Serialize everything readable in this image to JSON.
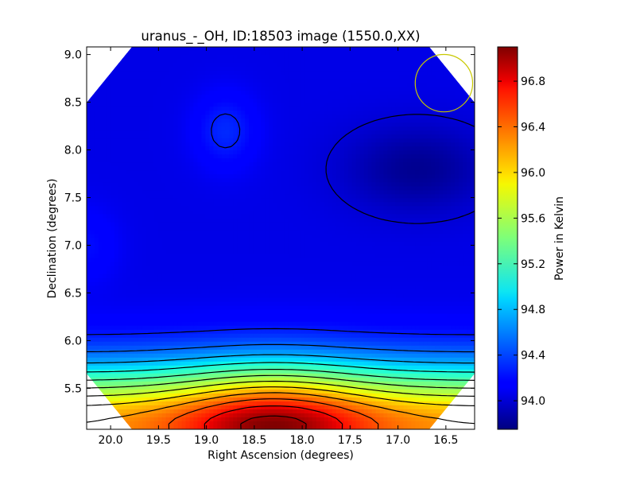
{
  "chart_data": {
    "type": "heatmap",
    "title": "uranus_-_OH, ID:18503 image (1550.0,XX)",
    "xlabel": "Right Ascension (degrees)",
    "ylabel": "Declination (degrees)",
    "colorbar_label": "Power in Kelvin",
    "xlim": [
      20.25,
      16.2
    ],
    "ylim": [
      5.07,
      9.08
    ],
    "x_ticks": [
      {
        "value": 20.0,
        "label": "20.0"
      },
      {
        "value": 19.5,
        "label": "19.5"
      },
      {
        "value": 19.0,
        "label": "19.0"
      },
      {
        "value": 18.5,
        "label": "18.5"
      },
      {
        "value": 18.0,
        "label": "18.0"
      },
      {
        "value": 17.5,
        "label": "17.5"
      },
      {
        "value": 17.0,
        "label": "17.0"
      },
      {
        "value": 16.5,
        "label": "16.5"
      }
    ],
    "y_ticks": [
      {
        "value": 5.5,
        "label": "5.5"
      },
      {
        "value": 6.0,
        "label": "6.0"
      },
      {
        "value": 6.5,
        "label": "6.5"
      },
      {
        "value": 7.0,
        "label": "7.0"
      },
      {
        "value": 7.5,
        "label": "7.5"
      },
      {
        "value": 8.0,
        "label": "8.0"
      },
      {
        "value": 8.5,
        "label": "8.5"
      },
      {
        "value": 9.0,
        "label": "9.0"
      }
    ],
    "colorbar_range": [
      93.75,
      97.1
    ],
    "colorbar_ticks": [
      {
        "value": 94.0,
        "label": "94.0"
      },
      {
        "value": 94.4,
        "label": "94.4"
      },
      {
        "value": 94.8,
        "label": "94.8"
      },
      {
        "value": 95.2,
        "label": "95.2"
      },
      {
        "value": 95.6,
        "label": "95.6"
      },
      {
        "value": 96.0,
        "label": "96.0"
      },
      {
        "value": 96.4,
        "label": "96.4"
      },
      {
        "value": 96.8,
        "label": "96.8"
      }
    ],
    "colormap": "jet",
    "field_features": [
      {
        "kind": "peak",
        "ra": 18.3,
        "dec": 5.1,
        "value": 97.1
      },
      {
        "kind": "local_max",
        "ra": 18.8,
        "dec": 8.2,
        "value": 94.3
      },
      {
        "kind": "minimum",
        "ra": 16.8,
        "dec": 7.8,
        "value": 93.8
      },
      {
        "kind": "local_max",
        "ra": 20.25,
        "dec": 7.0,
        "value": 94.2
      }
    ],
    "beam_marker": {
      "ra": 16.52,
      "dec": 8.7,
      "radius_deg": 0.3,
      "color": "#c8c800"
    },
    "grid": false,
    "legend": "colorbar-right"
  }
}
